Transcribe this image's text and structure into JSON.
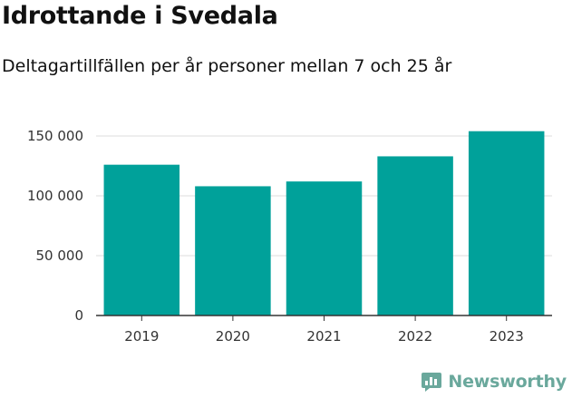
{
  "chart_data": {
    "type": "bar",
    "title": "Idrottande i Svedala",
    "subtitle": "Deltagartillfällen per år personer mellan 7 och 25 år",
    "categories": [
      "2019",
      "2020",
      "2021",
      "2022",
      "2023"
    ],
    "values": [
      126000,
      108000,
      112000,
      133000,
      154000
    ],
    "ylim": [
      0,
      150000
    ],
    "yticks": [
      0,
      50000,
      100000,
      150000
    ],
    "ytick_labels": [
      "0",
      "50 000",
      "100 000",
      "150 000"
    ],
    "xlabel": "",
    "ylabel": "",
    "grid": true,
    "bar_color": "#00a19a"
  },
  "brand": {
    "name": "Newsworthy",
    "icon": "newsworthy-logo-icon",
    "color": "#6aa89c"
  }
}
